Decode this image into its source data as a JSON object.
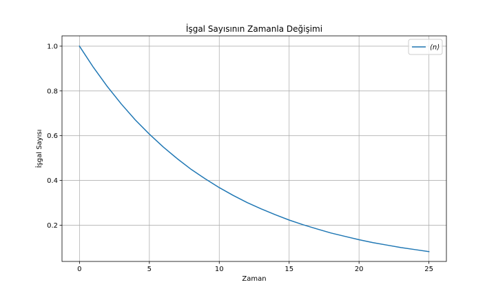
{
  "chart_data": {
    "type": "line",
    "title": "İşgal Sayısının Zamanla Değişimi",
    "xlabel": "Zaman",
    "ylabel": "İşgal Sayısı",
    "xlim": [
      -1.25,
      26.25
    ],
    "ylim": [
      0.038,
      1.046
    ],
    "xticks": [
      0,
      5,
      10,
      15,
      20,
      25
    ],
    "xtick_labels": [
      "0",
      "5",
      "10",
      "15",
      "20",
      "25"
    ],
    "yticks": [
      0.2,
      0.4,
      0.6,
      0.8,
      1.0
    ],
    "ytick_labels": [
      "0.2",
      "0.4",
      "0.6",
      "0.8",
      "1.0"
    ],
    "grid": true,
    "legend_position": "top-right",
    "series": [
      {
        "name": "⟨n⟩",
        "color": "#1f77b4",
        "x": [
          0,
          1,
          2,
          3,
          4,
          5,
          6,
          7,
          8,
          9,
          10,
          11,
          12,
          13,
          14,
          15,
          16,
          17,
          18,
          19,
          20,
          21,
          22,
          23,
          24,
          25
        ],
        "values": [
          1.0,
          0.905,
          0.819,
          0.741,
          0.67,
          0.607,
          0.549,
          0.497,
          0.449,
          0.407,
          0.368,
          0.333,
          0.301,
          0.273,
          0.247,
          0.223,
          0.202,
          0.183,
          0.165,
          0.15,
          0.135,
          0.122,
          0.111,
          0.1,
          0.091,
          0.082
        ]
      }
    ]
  }
}
